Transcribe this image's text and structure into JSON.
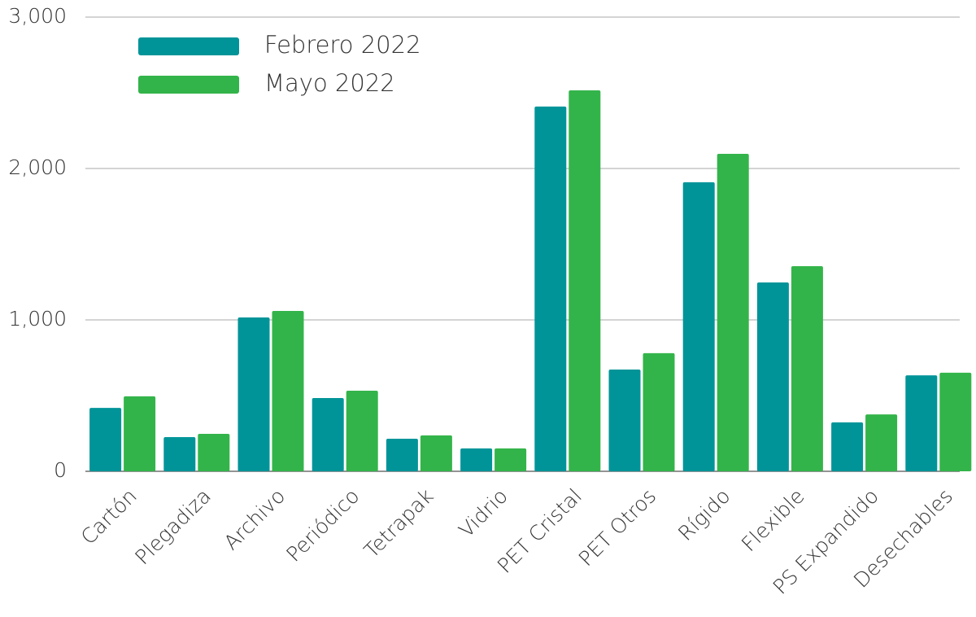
{
  "chart_data": {
    "type": "bar",
    "categories": [
      "Cartón",
      "Plegadiza",
      "Archivo",
      "Periódico",
      "Tetrapak",
      "Vidrio",
      "PET Cristal",
      "PET Otros",
      "Rígido",
      "Flexible",
      "PS Expandido",
      "Desechables"
    ],
    "series": [
      {
        "name": "Febrero 2022",
        "color": "#009499",
        "values": [
          419,
          226,
          1016,
          484,
          215,
          151,
          2409,
          672,
          1909,
          1247,
          323,
          634
        ]
      },
      {
        "name": "Mayo 2022",
        "color": "#33b44a",
        "values": [
          495,
          247,
          1059,
          532,
          237,
          151,
          2516,
          780,
          2097,
          1355,
          376,
          651
        ]
      }
    ],
    "ylim": [
      0,
      3000
    ],
    "yticks": [
      0,
      {
        "value": 1000,
        "label": "1,000"
      },
      {
        "value": 2000,
        "label": "2,000"
      },
      {
        "value": 3000,
        "label": "3,000"
      }
    ],
    "grid": true,
    "legend": "top-left"
  }
}
